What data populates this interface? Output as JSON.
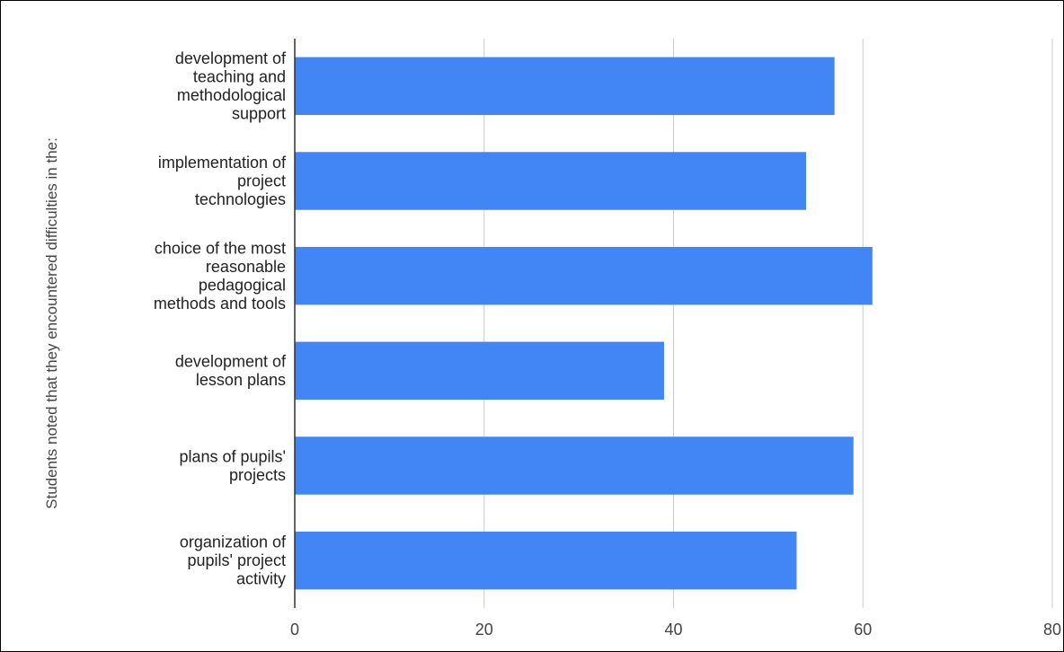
{
  "chart_data": {
    "type": "bar",
    "orientation": "horizontal",
    "ylabel": "Students noted that they encountered difficulties in the:",
    "xlabel": "",
    "title": "",
    "categories": [
      [
        "development of",
        "teaching and",
        "methodological",
        "support"
      ],
      [
        "implementation of",
        "project",
        "technologies"
      ],
      [
        "choice of the most",
        "reasonable",
        "pedagogical",
        "methods and tools"
      ],
      [
        "development of",
        "lesson plans"
      ],
      [
        "plans of pupils'",
        "projects"
      ],
      [
        "organization of",
        "pupils' project",
        "activity"
      ]
    ],
    "values": [
      57,
      54,
      61,
      39,
      59,
      53
    ],
    "xlim": [
      0,
      80
    ],
    "xticks": [
      "0",
      "20",
      "40",
      "60",
      "80"
    ],
    "grid": true,
    "colors": {
      "bar": "#4285F4",
      "grid": "#cccccc",
      "axis": "#333333"
    }
  }
}
